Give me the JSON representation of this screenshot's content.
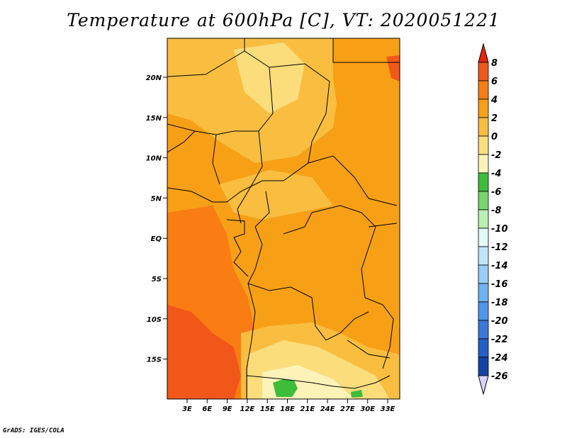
{
  "title": "Temperature at 600hPa [C], VT: 2020051221",
  "credit": "GrADS: IGES/COLA",
  "map": {
    "lat_labels": [
      "20N",
      "15N",
      "10N",
      "5N",
      "EQ",
      "5S",
      "10S",
      "15S"
    ],
    "lon_labels": [
      "3E",
      "6E",
      "9E",
      "12E",
      "15E",
      "18E",
      "21E",
      "24E",
      "27E",
      "30E",
      "33E"
    ],
    "lon_range": [
      0,
      35
    ],
    "lat_range": [
      -20,
      24
    ]
  },
  "colorbar": {
    "labels": [
      "8",
      "6",
      "4",
      "2",
      "0",
      "-2",
      "-4",
      "-6",
      "-8",
      "-10",
      "-12",
      "-14",
      "-16",
      "-18",
      "-20",
      "-22",
      "-24",
      "-26"
    ],
    "colors": [
      "#e0280f",
      "#f2571a",
      "#f97d12",
      "#f7a016",
      "#f9be40",
      "#fbdd7c",
      "#fdf3b8",
      "#3dbd3a",
      "#74d66b",
      "#b9f0b1",
      "#e4f7f9",
      "#bfe5fb",
      "#96cdfa",
      "#6fb3f5",
      "#4e96ec",
      "#3a78db",
      "#225fc8",
      "#1443a6",
      "#0a1a6e",
      "#d9d2ff"
    ]
  },
  "regions": {
    "base": "#f7a016",
    "warm": "#f97d12",
    "hot": "#f2571a",
    "cool": "#f9be40",
    "cooler": "#fbdd7c",
    "green": "#3dbd3a"
  }
}
